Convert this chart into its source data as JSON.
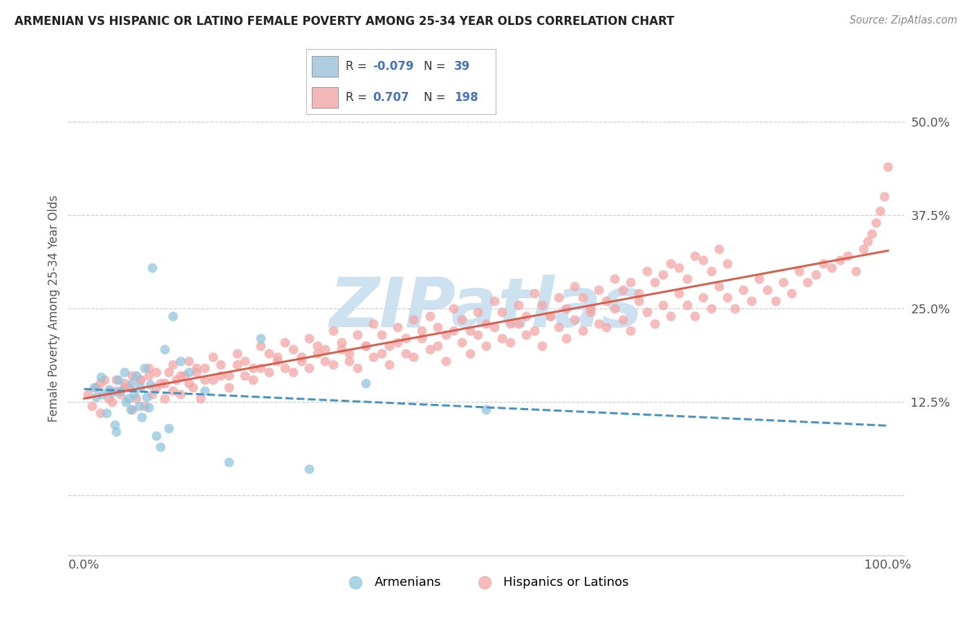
{
  "title": "ARMENIAN VS HISPANIC OR LATINO FEMALE POVERTY AMONG 25-34 YEAR OLDS CORRELATION CHART",
  "source": "Source: ZipAtlas.com",
  "ylabel": "Female Poverty Among 25-34 Year Olds",
  "xlim": [
    -2,
    102
  ],
  "ylim": [
    -8,
    58
  ],
  "yticks": [
    0,
    12.5,
    25.0,
    37.5,
    50.0
  ],
  "xtick_labels": [
    "0.0%",
    "100.0%"
  ],
  "armenian_color": "#92c5de",
  "hispanic_color": "#f4a6a6",
  "trend_armenian_color": "#4393c3",
  "trend_hispanic_color": "#d6604d",
  "watermark_color": "#c8dff0",
  "background_color": "#ffffff",
  "arm_x": [
    1.2,
    1.5,
    2.1,
    2.3,
    2.8,
    3.1,
    3.5,
    3.8,
    4.0,
    4.2,
    4.5,
    5.0,
    5.2,
    5.5,
    5.8,
    6.0,
    6.2,
    6.5,
    6.8,
    7.0,
    7.2,
    7.5,
    7.8,
    8.0,
    8.2,
    8.5,
    9.0,
    9.5,
    10.0,
    10.5,
    11.0,
    12.0,
    13.0,
    15.0,
    18.0,
    22.0,
    28.0,
    35.0,
    50.0
  ],
  "arm_y": [
    14.5,
    13.2,
    15.8,
    13.5,
    11.0,
    14.2,
    13.8,
    9.5,
    8.5,
    15.5,
    14.0,
    16.5,
    12.5,
    13.0,
    11.5,
    15.0,
    13.5,
    16.0,
    12.0,
    14.5,
    10.5,
    17.0,
    13.2,
    11.8,
    14.8,
    30.5,
    8.0,
    6.5,
    19.5,
    9.0,
    24.0,
    18.0,
    16.5,
    14.0,
    4.5,
    21.0,
    3.5,
    15.0,
    11.5
  ],
  "hisp_x": [
    0.5,
    1.0,
    1.5,
    2.0,
    2.5,
    3.0,
    3.5,
    4.0,
    4.5,
    5.0,
    5.5,
    6.0,
    6.5,
    7.0,
    7.5,
    8.0,
    8.5,
    9.0,
    9.5,
    10.0,
    10.5,
    11.0,
    11.5,
    12.0,
    12.5,
    13.0,
    13.5,
    14.0,
    14.5,
    15.0,
    16.0,
    17.0,
    18.0,
    19.0,
    20.0,
    21.0,
    22.0,
    23.0,
    24.0,
    25.0,
    26.0,
    27.0,
    28.0,
    29.0,
    30.0,
    31.0,
    32.0,
    33.0,
    34.0,
    35.0,
    36.0,
    37.0,
    38.0,
    39.0,
    40.0,
    41.0,
    42.0,
    43.0,
    44.0,
    45.0,
    46.0,
    47.0,
    48.0,
    49.0,
    50.0,
    51.0,
    52.0,
    53.0,
    54.0,
    55.0,
    56.0,
    57.0,
    58.0,
    59.0,
    60.0,
    61.0,
    62.0,
    63.0,
    64.0,
    65.0,
    66.0,
    67.0,
    68.0,
    69.0,
    70.0,
    71.0,
    72.0,
    73.0,
    74.0,
    75.0,
    76.0,
    77.0,
    78.0,
    79.0,
    80.0,
    81.0,
    82.0,
    83.0,
    84.0,
    85.0,
    86.0,
    87.0,
    88.0,
    89.0,
    90.0,
    91.0,
    92.0,
    93.0,
    94.0,
    95.0,
    96.0,
    97.0,
    97.5,
    98.0,
    98.5,
    99.0,
    99.5,
    100.0,
    2.0,
    3.0,
    4.0,
    5.0,
    6.0,
    7.0,
    8.0,
    9.0,
    10.0,
    11.0,
    12.0,
    13.0,
    14.0,
    15.0,
    16.0,
    17.0,
    18.0,
    19.0,
    20.0,
    21.0,
    22.0,
    23.0,
    24.0,
    25.0,
    26.0,
    27.0,
    28.0,
    29.0,
    30.0,
    31.0,
    32.0,
    33.0,
    34.0,
    35.0,
    36.0,
    37.0,
    38.0,
    39.0,
    40.0,
    41.0,
    42.0,
    43.0,
    44.0,
    45.0,
    46.0,
    47.0,
    48.0,
    49.0,
    50.0,
    51.0,
    52.0,
    53.0,
    54.0,
    55.0,
    56.0,
    57.0,
    58.0,
    59.0,
    60.0,
    61.0,
    62.0,
    63.0,
    64.0,
    65.0,
    66.0,
    67.0,
    68.0,
    69.0,
    70.0,
    71.0,
    72.0,
    73.0,
    74.0,
    75.0,
    76.0,
    77.0,
    78.0,
    79.0,
    80.0
  ],
  "hisp_y": [
    13.5,
    12.0,
    14.5,
    11.0,
    15.5,
    13.0,
    12.5,
    14.0,
    13.5,
    15.0,
    14.5,
    11.5,
    13.0,
    15.5,
    12.0,
    16.0,
    13.5,
    14.5,
    15.0,
    13.0,
    16.5,
    14.0,
    15.5,
    13.5,
    16.0,
    15.0,
    14.5,
    16.5,
    13.0,
    17.0,
    15.5,
    16.0,
    14.5,
    17.5,
    16.0,
    15.5,
    17.0,
    16.5,
    18.0,
    17.0,
    16.5,
    18.5,
    17.0,
    19.0,
    18.0,
    17.5,
    19.5,
    18.0,
    17.0,
    20.0,
    18.5,
    19.0,
    17.5,
    20.5,
    19.0,
    18.5,
    21.0,
    19.5,
    20.0,
    18.0,
    22.0,
    20.5,
    19.0,
    21.5,
    20.0,
    22.5,
    21.0,
    20.5,
    23.0,
    21.5,
    22.0,
    20.0,
    24.0,
    22.5,
    21.0,
    23.5,
    22.0,
    24.5,
    23.0,
    22.5,
    25.0,
    23.5,
    22.0,
    26.0,
    24.5,
    23.0,
    25.5,
    24.0,
    27.0,
    25.5,
    24.0,
    26.5,
    25.0,
    28.0,
    26.5,
    25.0,
    27.5,
    26.0,
    29.0,
    27.5,
    26.0,
    28.5,
    27.0,
    30.0,
    28.5,
    29.5,
    31.0,
    30.5,
    31.5,
    32.0,
    30.0,
    33.0,
    34.0,
    35.0,
    36.5,
    38.0,
    40.0,
    44.0,
    15.0,
    14.0,
    15.5,
    14.5,
    16.0,
    15.5,
    17.0,
    16.5,
    15.0,
    17.5,
    16.0,
    18.0,
    17.0,
    15.5,
    18.5,
    17.5,
    16.0,
    19.0,
    18.0,
    17.0,
    20.0,
    19.0,
    18.5,
    20.5,
    19.5,
    18.0,
    21.0,
    20.0,
    19.5,
    22.0,
    20.5,
    19.0,
    21.5,
    20.0,
    23.0,
    21.5,
    20.0,
    22.5,
    21.0,
    23.5,
    22.0,
    24.0,
    22.5,
    21.5,
    25.0,
    23.5,
    22.0,
    24.5,
    23.0,
    26.0,
    24.5,
    23.0,
    25.5,
    24.0,
    27.0,
    25.5,
    24.0,
    26.5,
    25.0,
    28.0,
    26.5,
    25.0,
    27.5,
    26.0,
    29.0,
    27.5,
    28.5,
    27.0,
    30.0,
    28.5,
    29.5,
    31.0,
    30.5,
    29.0,
    32.0,
    31.5,
    30.0,
    33.0,
    31.0
  ]
}
